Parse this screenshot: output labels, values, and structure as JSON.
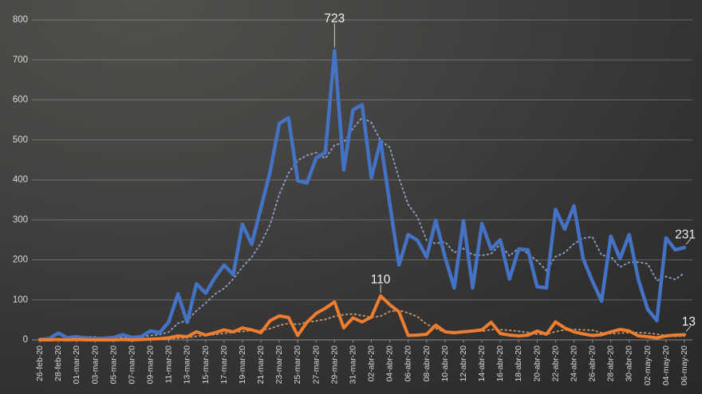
{
  "chart_data": {
    "type": "line",
    "title": "",
    "xlabel": "",
    "ylabel": "",
    "grid": true,
    "legend": "none",
    "y_axis": {
      "min": 0,
      "max": 800,
      "step": 100,
      "tick_labels": [
        "0",
        "100",
        "200",
        "300",
        "400",
        "500",
        "600",
        "700",
        "800"
      ]
    },
    "x_labels": [
      "26-feb-20",
      "28-feb-20",
      "01-mar-20",
      "03-mar-20",
      "05-mar-20",
      "07-mar-20",
      "09-mar-20",
      "11-mar-20",
      "13-mar-20",
      "15-mar-20",
      "17-mar-20",
      "19-mar-20",
      "21-mar-20",
      "23-mar-20",
      "25-mar-20",
      "27-mar-20",
      "29-mar-20",
      "31-mar-20",
      "02-abr-20",
      "04-abr-20",
      "06-abr-20",
      "08-abr-20",
      "10-abr-20",
      "12-abr-20",
      "14-abr-20",
      "16-abr-20",
      "18-abr-20",
      "20-abr-20",
      "22-abr-20",
      "24-abr-20",
      "26-abr-20",
      "28-abr-20",
      "30-abr-20",
      "02-may-20",
      "04-may-20",
      "06-may-20"
    ],
    "x_label_every_n_points": 2,
    "series": [
      {
        "id": "blue-daily",
        "color": "#4472C4",
        "width": 4.5,
        "values": [
          1,
          3,
          17,
          5,
          8,
          4,
          3,
          4,
          6,
          13,
          6,
          8,
          22,
          18,
          45,
          115,
          44,
          140,
          117,
          155,
          187,
          163,
          289,
          239,
          330,
          420,
          541,
          555,
          398,
          392,
          455,
          468,
          723,
          425,
          575,
          588,
          405,
          498,
          340,
          187,
          263,
          249,
          207,
          299,
          207,
          130,
          298,
          130,
          291,
          227,
          250,
          152,
          227,
          225,
          133,
          130,
          326,
          277,
          335,
          203,
          147,
          97,
          259,
          203,
          263,
          150,
          77,
          48,
          255,
          225,
          231
        ]
      },
      {
        "id": "orange-daily",
        "color": "#ED7D31",
        "width": 4,
        "values": [
          0,
          0,
          1,
          0,
          1,
          0,
          0,
          0,
          0,
          1,
          0,
          1,
          2,
          3,
          5,
          10,
          8,
          20,
          12,
          18,
          25,
          20,
          30,
          25,
          18,
          48,
          60,
          56,
          11,
          44,
          66,
          79,
          95,
          30,
          55,
          45,
          57,
          110,
          88,
          70,
          11,
          12,
          14,
          37,
          20,
          18,
          20,
          22,
          25,
          44,
          16,
          12,
          10,
          12,
          22,
          14,
          45,
          30,
          20,
          15,
          11,
          13,
          20,
          26,
          22,
          10,
          8,
          5,
          10,
          12,
          13
        ]
      }
    ],
    "trendlines": [
      {
        "of": "blue-daily",
        "type": "moving_average",
        "window": 5,
        "color": "#8FAADC",
        "opacity": 0.85
      },
      {
        "of": "orange-daily",
        "type": "moving_average",
        "window": 5,
        "color": "#E0A778",
        "opacity": 0.8
      }
    ],
    "callouts": [
      {
        "series": "blue-daily",
        "index": 32,
        "label": "723",
        "placement": "above"
      },
      {
        "series": "orange-daily",
        "index": 37,
        "label": "110",
        "placement": "above"
      },
      {
        "series": "blue-daily",
        "index": 70,
        "label": "231",
        "placement": "end"
      },
      {
        "series": "orange-daily",
        "index": 70,
        "label": "13",
        "placement": "end"
      }
    ],
    "style": {
      "background_light": "#51504d",
      "background_dark": "#262524",
      "gridline_color": "rgba(217,217,217,0.30)",
      "axis_line_color": "#8c8c8c",
      "tick_label_color": "#d9d9d9",
      "callout_label_color": "#f2f2f2",
      "callout_leader_color": "rgba(255,255,255,0.75)"
    }
  }
}
